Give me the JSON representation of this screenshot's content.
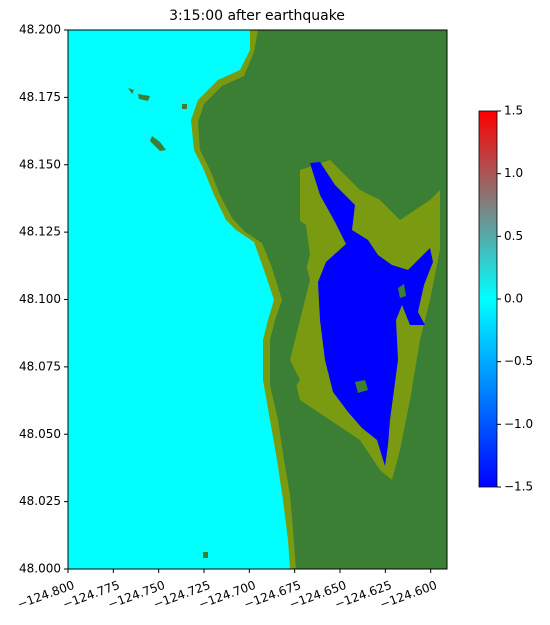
{
  "chart_data": {
    "type": "map",
    "title": "3:15:00 after earthquake",
    "xlim": [
      -124.8,
      -124.591
    ],
    "xticks": [
      {
        "value": -124.8,
        "label": "−124.800"
      },
      {
        "value": -124.775,
        "label": "−124.775"
      },
      {
        "value": -124.75,
        "label": "−124.750"
      },
      {
        "value": -124.725,
        "label": "−124.725"
      },
      {
        "value": -124.7,
        "label": "−124.700"
      },
      {
        "value": -124.675,
        "label": "−124.675"
      },
      {
        "value": -124.65,
        "label": "−124.650"
      },
      {
        "value": -124.625,
        "label": "−124.625"
      },
      {
        "value": -124.6,
        "label": "−124.600"
      }
    ],
    "ylim": [
      48.0,
      48.2
    ],
    "yticks": [
      {
        "value": 48.0,
        "label": "48.000"
      },
      {
        "value": 48.025,
        "label": "48.025"
      },
      {
        "value": 48.05,
        "label": "48.050"
      },
      {
        "value": 48.075,
        "label": "48.075"
      },
      {
        "value": 48.1,
        "label": "48.100"
      },
      {
        "value": 48.125,
        "label": "48.125"
      },
      {
        "value": 48.15,
        "label": "48.150"
      },
      {
        "value": 48.175,
        "label": "48.175"
      },
      {
        "value": 48.2,
        "label": "48.200"
      }
    ],
    "colorbar": {
      "lim": [
        -1.5,
        1.5
      ],
      "ticks": [
        {
          "value": -1.5,
          "label": "−1.5"
        },
        {
          "value": -1.0,
          "label": "−1.0"
        },
        {
          "value": -0.5,
          "label": "−0.5"
        },
        {
          "value": 0,
          "label": "0.0"
        },
        0.5,
        {
          "value": 1.0,
          "label": "1.0"
        },
        1.5
      ],
      "colors": [
        "#0000ff",
        "#0080ff",
        "#00ffff",
        "#808080",
        "#ff0000"
      ]
    }
  }
}
